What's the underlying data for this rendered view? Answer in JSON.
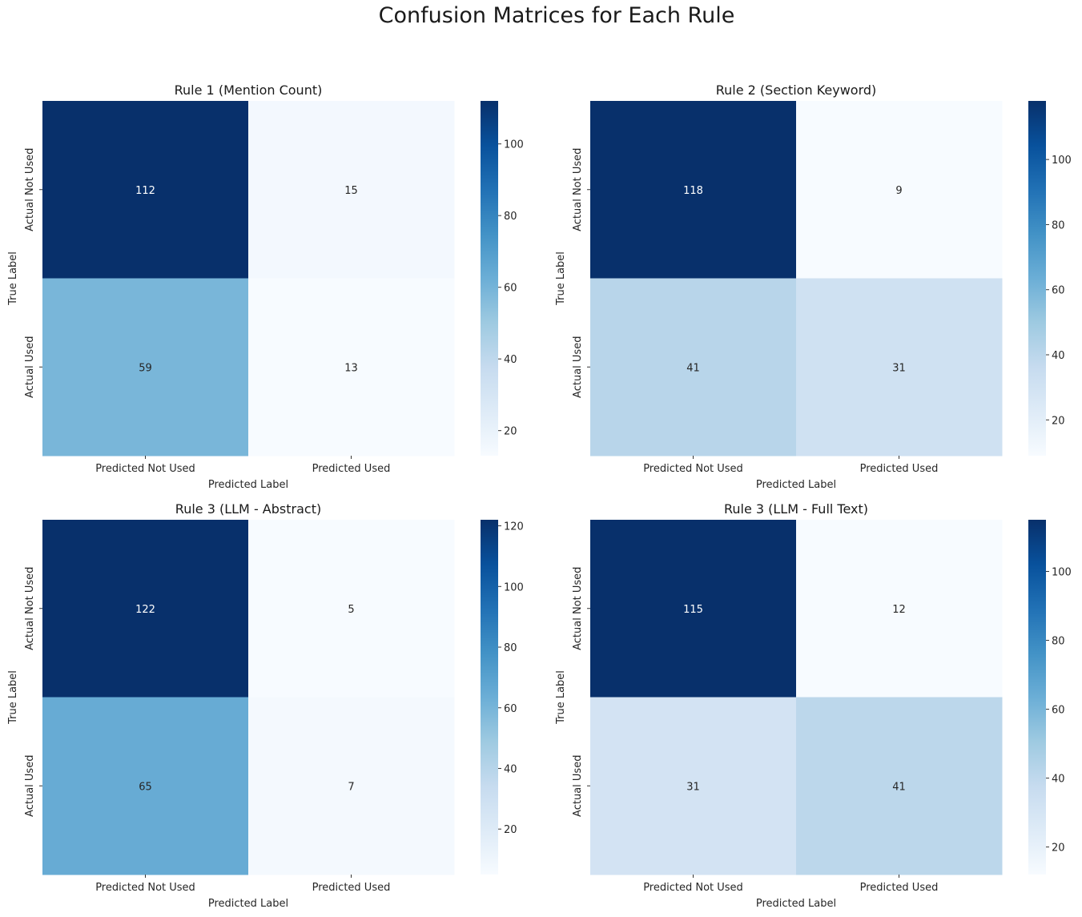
{
  "suptitle": "Confusion Matrices for Each Rule",
  "chart_data": [
    {
      "type": "heatmap",
      "title": "Rule 1 (Mention Count)",
      "xlabel": "Predicted Label",
      "ylabel": "True Label",
      "x_ticklabels": [
        "Predicted Not Used",
        "Predicted Used"
      ],
      "y_ticklabels": [
        "Actual Not Used",
        "Actual Used"
      ],
      "values": [
        [
          112,
          15
        ],
        [
          59,
          13
        ]
      ],
      "colormap": "Blues",
      "vmin": 13,
      "vmax": 112,
      "colorbar_ticks": [
        20,
        40,
        60,
        80,
        100
      ]
    },
    {
      "type": "heatmap",
      "title": "Rule 2 (Section Keyword)",
      "xlabel": "Predicted Label",
      "ylabel": "True Label",
      "x_ticklabels": [
        "Predicted Not Used",
        "Predicted Used"
      ],
      "y_ticklabels": [
        "Actual Not Used",
        "Actual Used"
      ],
      "values": [
        [
          118,
          9
        ],
        [
          41,
          31
        ]
      ],
      "colormap": "Blues",
      "vmin": 9,
      "vmax": 118,
      "colorbar_ticks": [
        20,
        40,
        60,
        80,
        100
      ]
    },
    {
      "type": "heatmap",
      "title": "Rule 3 (LLM - Abstract)",
      "xlabel": "Predicted Label",
      "ylabel": "True Label",
      "x_ticklabels": [
        "Predicted Not Used",
        "Predicted Used"
      ],
      "y_ticklabels": [
        "Actual Not Used",
        "Actual Used"
      ],
      "values": [
        [
          122,
          5
        ],
        [
          65,
          7
        ]
      ],
      "colormap": "Blues",
      "vmin": 5,
      "vmax": 122,
      "colorbar_ticks": [
        20,
        40,
        60,
        80,
        100,
        120
      ]
    },
    {
      "type": "heatmap",
      "title": "Rule 3 (LLM - Full Text)",
      "xlabel": "Predicted Label",
      "ylabel": "True Label",
      "x_ticklabels": [
        "Predicted Not Used",
        "Predicted Used"
      ],
      "y_ticklabels": [
        "Actual Not Used",
        "Actual Used"
      ],
      "values": [
        [
          115,
          12
        ],
        [
          31,
          41
        ]
      ],
      "colormap": "Blues",
      "vmin": 12,
      "vmax": 115,
      "colorbar_ticks": [
        20,
        40,
        60,
        80,
        100
      ]
    }
  ]
}
